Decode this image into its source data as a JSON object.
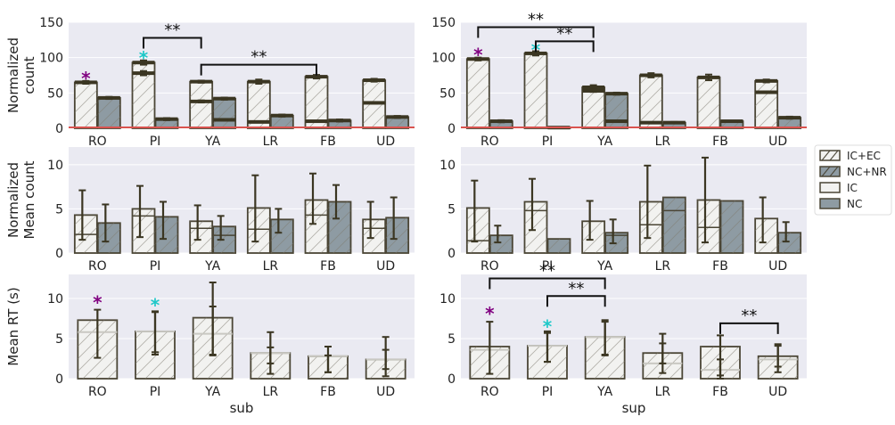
{
  "colors": {
    "panel_bg": "#eaeaf2",
    "grid": "#ffffff",
    "light_fill": "#f2f2f0",
    "dark_fill": "#8e9ba3",
    "edge": "#4a4535",
    "err": "#3b3622",
    "baseline": "#d9534f",
    "purple": "#800080",
    "cyan": "#1ec8c8"
  },
  "xlabels": {
    "sub": "sub",
    "sup": "sup"
  },
  "legend": {
    "position": "right",
    "entries": [
      {
        "label": "IC+EC",
        "style": "light-hatched"
      },
      {
        "label": "NC+NR",
        "style": "dark-hatched"
      },
      {
        "label": "IC",
        "style": "light"
      },
      {
        "label": "NC",
        "style": "dark"
      }
    ]
  },
  "chart_data": [
    {
      "type": "bar",
      "panel": "top-left",
      "ylabel": [
        "Normalized",
        "count"
      ],
      "xlabel": "",
      "ylim": [
        0,
        150
      ],
      "yticks": [
        0,
        50,
        100,
        150
      ],
      "grid": true,
      "categories": [
        "RO",
        "PI",
        "YA",
        "LR",
        "FB",
        "UD"
      ],
      "series": [
        {
          "name": "IC+EC",
          "values": [
            65,
            93,
            66,
            66,
            73,
            68
          ],
          "err": [
            2,
            3,
            1.5,
            3,
            2.5,
            2
          ]
        },
        {
          "name": "NC+NR",
          "values": [
            43,
            13,
            42,
            18,
            11,
            16
          ],
          "err": [
            1.5,
            1.5,
            1.5,
            1.5,
            1.5,
            1.5
          ]
        },
        {
          "name": "IC",
          "values": [
            0,
            78,
            38,
            9,
            10,
            36
          ],
          "err": [
            0,
            3,
            1.5,
            0,
            0,
            1
          ]
        },
        {
          "name": "NC",
          "values": [
            0,
            0,
            12,
            0,
            0,
            0
          ],
          "err": [
            0,
            0,
            1,
            0,
            0,
            0
          ]
        }
      ],
      "annotations": [
        {
          "text": "*",
          "category": "RO",
          "y": 72,
          "color": "purple"
        },
        {
          "text": "*",
          "category": "PI",
          "y": 101,
          "color": "cyan"
        },
        {
          "text": "**",
          "from": "PI",
          "to": "YA",
          "y": 128
        },
        {
          "text": "**",
          "from": "YA",
          "to": "FB",
          "y": 90
        }
      ]
    },
    {
      "type": "bar",
      "panel": "top-right",
      "ylabel": [],
      "xlabel": "",
      "ylim": [
        0,
        150
      ],
      "yticks": [
        0,
        50,
        100,
        150
      ],
      "grid": true,
      "categories": [
        "RO",
        "PI",
        "YA",
        "LR",
        "FB",
        "UD"
      ],
      "series": [
        {
          "name": "IC+EC",
          "values": [
            98,
            106,
            58,
            75,
            72,
            67
          ],
          "err": [
            2,
            3,
            3,
            3,
            4,
            2
          ]
        },
        {
          "name": "NC+NR",
          "values": [
            10,
            1,
            49,
            8,
            10,
            15
          ],
          "err": [
            1.5,
            0,
            1.5,
            1,
            0,
            1.5
          ]
        },
        {
          "name": "IC",
          "values": [
            0,
            0,
            53,
            8,
            0,
            51
          ],
          "err": [
            0,
            0,
            1.5,
            0,
            0,
            1
          ]
        },
        {
          "name": "NC",
          "values": [
            0,
            0,
            10,
            0,
            0,
            0
          ],
          "err": [
            0,
            0,
            0,
            0,
            0,
            0
          ]
        }
      ],
      "annotations": [
        {
          "text": "*",
          "category": "RO",
          "y": 105,
          "color": "purple"
        },
        {
          "text": "*",
          "category": "PI",
          "y": 112,
          "color": "cyan"
        },
        {
          "text": "**",
          "from": "RO",
          "to": "YA",
          "y": 143
        },
        {
          "text": "**",
          "from": "PI",
          "to": "YA",
          "y": 123
        }
      ]
    },
    {
      "type": "bar",
      "panel": "mid-left",
      "ylabel": [
        "Normalized",
        "Mean count"
      ],
      "xlabel": "",
      "ylim": [
        0,
        12
      ],
      "yticks": [
        0,
        5,
        10
      ],
      "grid": true,
      "categories": [
        "RO",
        "PI",
        "YA",
        "LR",
        "FB",
        "UD"
      ],
      "series": [
        {
          "name": "IC+EC",
          "values": [
            4.3,
            5.0,
            3.6,
            5.1,
            6.0,
            3.8
          ],
          "lo": [
            1.5,
            1.8,
            1.5,
            1.3,
            3.3,
            1.7
          ],
          "hi": [
            7.1,
            7.6,
            5.4,
            8.8,
            9.0,
            5.8
          ]
        },
        {
          "name": "NC+NR",
          "values": [
            3.4,
            4.1,
            3.0,
            3.8,
            5.8,
            4.0
          ],
          "lo": [
            1.3,
            1.6,
            1.5,
            2.3,
            3.9,
            1.6
          ],
          "hi": [
            5.5,
            5.8,
            4.2,
            5.0,
            7.7,
            6.3
          ]
        },
        {
          "name": "IC",
          "values": [
            2.1,
            4.2,
            2.8,
            2.7,
            4.3,
            2.8
          ],
          "lo": [
            0,
            0,
            0,
            0,
            0,
            0
          ],
          "hi": [
            0,
            0,
            0,
            0,
            0,
            0
          ]
        },
        {
          "name": "NC",
          "values": [
            0,
            0,
            2.0,
            0,
            0,
            0
          ],
          "lo": [
            0,
            0,
            0,
            0,
            0,
            0
          ],
          "hi": [
            0,
            0,
            0,
            0,
            0,
            0
          ]
        }
      ],
      "annotations": []
    },
    {
      "type": "bar",
      "panel": "mid-right",
      "ylabel": [],
      "xlabel": "",
      "ylim": [
        0,
        12
      ],
      "yticks": [
        0,
        5,
        10
      ],
      "grid": true,
      "categories": [
        "RO",
        "PI",
        "YA",
        "LR",
        "FB",
        "UD"
      ],
      "series": [
        {
          "name": "IC+EC",
          "values": [
            5.1,
            5.8,
            3.6,
            5.8,
            6.0,
            3.9
          ],
          "lo": [
            1.3,
            2.6,
            1.5,
            1.7,
            1.2,
            1.2
          ],
          "hi": [
            8.2,
            8.4,
            5.9,
            9.9,
            10.8,
            6.3
          ]
        },
        {
          "name": "NC+NR",
          "values": [
            2.0,
            1.6,
            2.3,
            6.3,
            5.9,
            2.3
          ],
          "lo": [
            1.2,
            0,
            1.1,
            0,
            0,
            1.3
          ],
          "hi": [
            3.1,
            0,
            3.8,
            0,
            0,
            3.5
          ]
        },
        {
          "name": "IC",
          "values": [
            1.4,
            4.8,
            3.6,
            3.2,
            2.9,
            0
          ],
          "lo": [
            0,
            0,
            0,
            0,
            0,
            0
          ],
          "hi": [
            0,
            0,
            0,
            0,
            0,
            0
          ]
        },
        {
          "name": "NC",
          "values": [
            0,
            0,
            2.0,
            4.8,
            0,
            0
          ],
          "lo": [
            0,
            0,
            0,
            0,
            0,
            0
          ],
          "hi": [
            0,
            0,
            0,
            0,
            0,
            0
          ]
        }
      ],
      "annotations": []
    },
    {
      "type": "bar",
      "panel": "bottom-left",
      "ylabel": [
        "Mean RT (s)"
      ],
      "xlabel": "sub",
      "ylim": [
        0,
        13
      ],
      "yticks": [
        0,
        5,
        10
      ],
      "grid": true,
      "categories": [
        "RO",
        "PI",
        "YA",
        "LR",
        "FB",
        "UD"
      ],
      "series": [
        {
          "name": "IC+EC",
          "values": [
            7.3,
            5.9,
            7.6,
            3.2,
            2.8,
            2.4
          ],
          "lo": [
            2.6,
            3.3,
            2.9,
            0.6,
            0.8,
            0.3
          ],
          "hi": [
            8.6,
            8.3,
            12.0,
            5.8,
            4.0,
            5.2
          ]
        },
        {
          "name": "IC",
          "values": [
            5.8,
            5.9,
            5.6,
            3.2,
            2.8,
            2.4
          ],
          "lo": [
            0,
            3.0,
            3.0,
            1.9,
            0.8,
            1.2
          ],
          "hi": [
            0,
            8.4,
            9.0,
            3.9,
            2.9,
            3.6
          ]
        }
      ],
      "annotations": [
        {
          "text": "*",
          "category": "RO",
          "y": 9.6,
          "color": "purple"
        },
        {
          "text": "*",
          "category": "PI",
          "y": 9.3,
          "color": "cyan"
        }
      ]
    },
    {
      "type": "bar",
      "panel": "bottom-right",
      "ylabel": [],
      "xlabel": "sup",
      "ylim": [
        0,
        13
      ],
      "yticks": [
        0,
        5,
        10
      ],
      "grid": true,
      "categories": [
        "RO",
        "PI",
        "YA",
        "LR",
        "FB",
        "UD"
      ],
      "series": [
        {
          "name": "IC+EC",
          "values": [
            4.0,
            4.1,
            5.2,
            3.2,
            4.0,
            2.8
          ],
          "lo": [
            0.6,
            2.1,
            2.9,
            0.7,
            0.4,
            0.8
          ],
          "hi": [
            7.1,
            5.9,
            7.3,
            5.6,
            5.4,
            4.3
          ]
        },
        {
          "name": "IC",
          "values": [
            3.6,
            4.1,
            5.2,
            1.9,
            1.1,
            2.4
          ],
          "lo": [
            0,
            2.1,
            3.0,
            1.9,
            0,
            1.5
          ],
          "hi": [
            0,
            5.7,
            7.1,
            4.4,
            2.4,
            4.1
          ]
        }
      ],
      "annotations": [
        {
          "text": "*",
          "category": "RO",
          "y": 8.2,
          "color": "purple"
        },
        {
          "text": "*",
          "category": "PI",
          "y": 6.6,
          "color": "cyan"
        },
        {
          "text": "**",
          "from": "RO",
          "to": "YA",
          "y": 12.5
        },
        {
          "text": "**",
          "from": "PI",
          "to": "YA",
          "y": 10.3
        },
        {
          "text": "**",
          "from": "FB",
          "to": "UD",
          "y": 6.9
        }
      ]
    }
  ]
}
